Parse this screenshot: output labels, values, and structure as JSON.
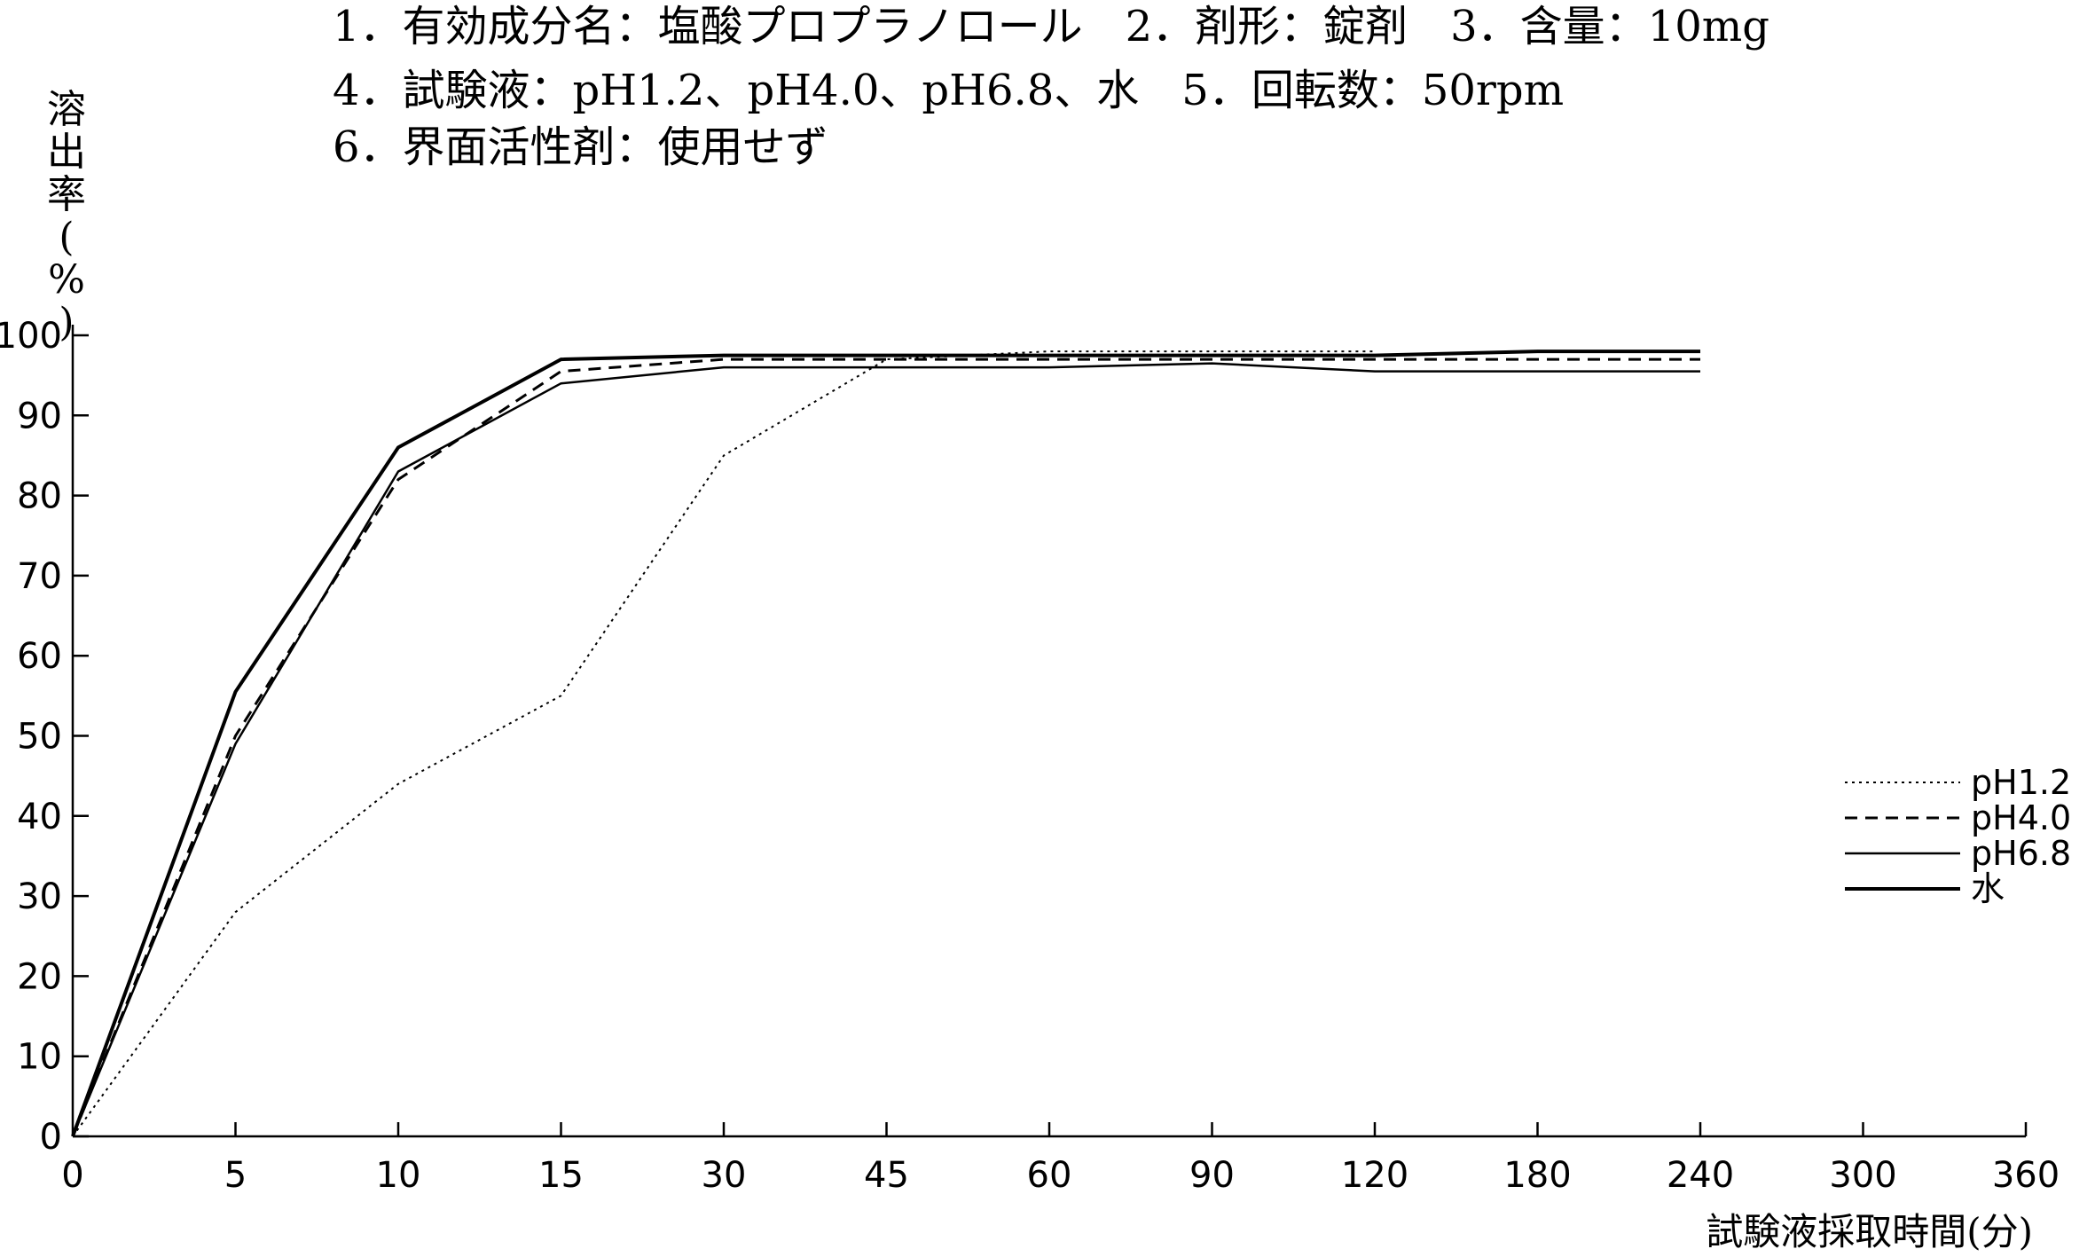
{
  "header": {
    "lines": [
      "1．有効成分名：塩酸プロプラノロール　2．剤形：錠剤　3．含量：10mg",
      "4．試験液：pH1.2、pH4.0、pH6.8、水　5．回転数：50rpm",
      "6．界面活性剤：使用せず"
    ]
  },
  "chart_data": {
    "type": "line",
    "ylabel": "溶出率(%)",
    "xlabel": "試験液採取時間(分)",
    "categories": [
      "0",
      "5",
      "10",
      "15",
      "30",
      "45",
      "60",
      "90",
      "120",
      "180",
      "240",
      "300",
      "360"
    ],
    "y_ticks": [
      "0",
      "10",
      "20",
      "30",
      "40",
      "50",
      "60",
      "70",
      "80",
      "90",
      "100"
    ],
    "ylim": [
      0,
      100
    ],
    "grid": false,
    "legend_position": "right",
    "series": [
      {
        "name": "pH1.2",
        "style": "dotted",
        "values": [
          0,
          28,
          44,
          55,
          85,
          97,
          98,
          98,
          98,
          null,
          null,
          null,
          null
        ]
      },
      {
        "name": "pH4.0",
        "style": "dashed",
        "values": [
          0,
          50,
          82,
          95.5,
          97,
          97,
          97,
          97,
          97,
          97,
          97,
          null,
          null
        ]
      },
      {
        "name": "pH6.8",
        "style": "solid-thin",
        "values": [
          0,
          49,
          83,
          94,
          96,
          96,
          96,
          96.5,
          95.5,
          95.5,
          95.5,
          null,
          null
        ]
      },
      {
        "name": "水",
        "style": "solid-thick",
        "values": [
          0,
          55.5,
          86,
          97,
          97.5,
          97.5,
          97.5,
          97.5,
          97.5,
          98,
          98,
          null,
          null
        ]
      }
    ]
  }
}
